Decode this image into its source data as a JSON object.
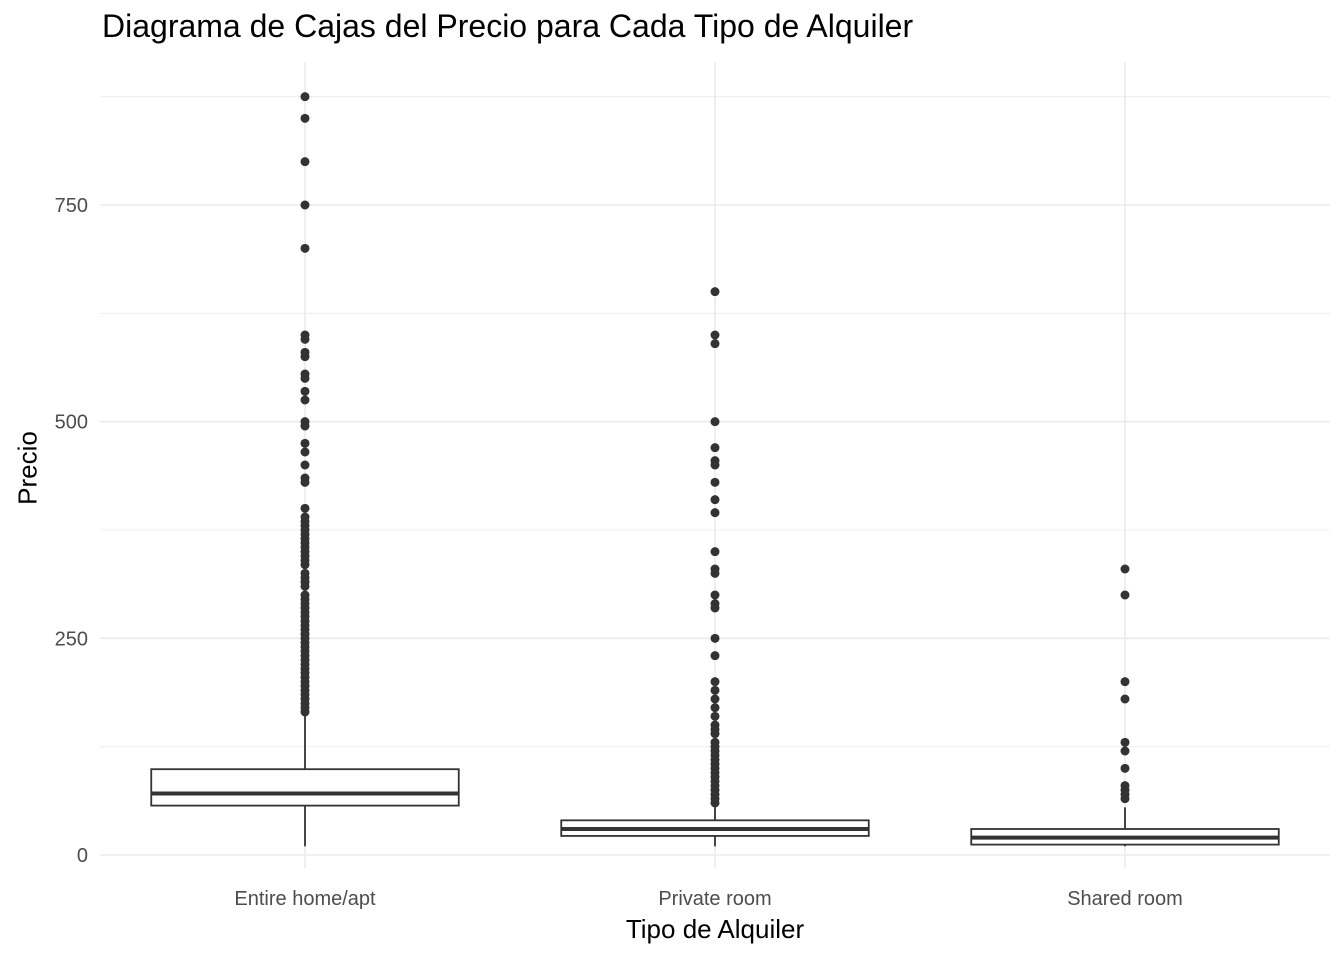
{
  "chart_data": {
    "type": "boxplot",
    "title": "Diagrama de Cajas del Precio para Cada Tipo de Alquiler",
    "xlabel": "Tipo de Alquiler",
    "ylabel": "Precio",
    "categories": [
      "Entire home/apt",
      "Private room",
      "Shared room"
    ],
    "ylim": [
      -15,
      915
    ],
    "yticks": [
      0,
      250,
      500,
      750
    ],
    "grid": true,
    "colors": {
      "box_stroke": "#333333",
      "point": "#333333",
      "grid": "#ebebeb",
      "tick_text": "#4d4d4d"
    },
    "boxes": [
      {
        "category": "Entire home/apt",
        "min": 10,
        "q1": 57,
        "median": 71,
        "q3": 99,
        "max": 164,
        "outliers": [
          875,
          850,
          800,
          750,
          700,
          600,
          595,
          580,
          575,
          555,
          550,
          535,
          525,
          500,
          495,
          475,
          465,
          450,
          435,
          430,
          400,
          390,
          385,
          380,
          375,
          370,
          365,
          360,
          355,
          350,
          345,
          340,
          335,
          325,
          320,
          315,
          310,
          300,
          295,
          290,
          285,
          280,
          275,
          270,
          265,
          260,
          255,
          250,
          245,
          240,
          235,
          230,
          225,
          220,
          215,
          210,
          205,
          200,
          195,
          190,
          185,
          180,
          175,
          170,
          165
        ]
      },
      {
        "category": "Private room",
        "min": 10,
        "q1": 22,
        "median": 30,
        "q3": 40,
        "max": 55,
        "outliers": [
          650,
          600,
          590,
          500,
          470,
          455,
          450,
          430,
          410,
          395,
          350,
          330,
          325,
          300,
          290,
          285,
          250,
          230,
          200,
          190,
          180,
          170,
          160,
          150,
          145,
          140,
          130,
          125,
          120,
          115,
          110,
          105,
          100,
          95,
          90,
          85,
          80,
          75,
          70,
          65,
          60
        ]
      },
      {
        "category": "Shared room",
        "min": 10,
        "q1": 12,
        "median": 20,
        "q3": 30,
        "max": 55,
        "outliers": [
          330,
          300,
          200,
          180,
          130,
          120,
          100,
          80,
          75,
          70,
          65
        ]
      }
    ]
  }
}
